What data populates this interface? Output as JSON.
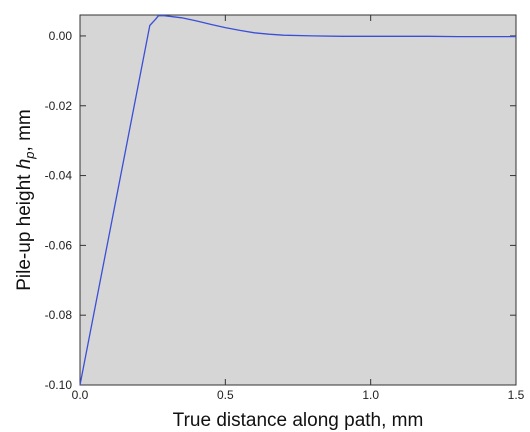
{
  "chart_data": {
    "type": "line",
    "title": "",
    "xlabel": "True distance along path, mm",
    "ylabel_prefix": "Pile-up height ",
    "ylabel_var": "h",
    "ylabel_sub": "p",
    "ylabel_suffix": ", mm",
    "xlim": [
      0.0,
      1.5
    ],
    "ylim": [
      -0.1,
      0.006
    ],
    "xticks": [
      "0.0",
      "0.5",
      "1.0",
      "1.5"
    ],
    "xtick_values": [
      0.0,
      0.5,
      1.0,
      1.5
    ],
    "yticks": [
      "0.00",
      "-0.02",
      "-0.04",
      "-0.06",
      "-0.08",
      "-0.10"
    ],
    "ytick_values": [
      0.0,
      -0.02,
      -0.04,
      -0.06,
      -0.08,
      -0.1
    ],
    "grid": false,
    "background_color": "#d6d6d6",
    "series": [
      {
        "color": "#3b4fd6",
        "x": [
          0.0,
          0.24,
          0.26,
          0.27,
          0.29,
          0.35,
          0.4,
          0.45,
          0.5,
          0.55,
          0.6,
          0.65,
          0.7,
          0.8,
          0.9,
          1.0,
          1.1,
          1.2,
          1.3,
          1.4,
          1.5
        ],
        "y": [
          -0.1,
          0.003,
          0.0048,
          0.0058,
          0.0058,
          0.0052,
          0.0043,
          0.0033,
          0.0024,
          0.0016,
          0.0009,
          0.0005,
          0.0002,
          0.0,
          -0.0001,
          -0.0001,
          -0.0001,
          -0.0001,
          -0.0002,
          -0.0002,
          -0.0002
        ]
      }
    ]
  }
}
